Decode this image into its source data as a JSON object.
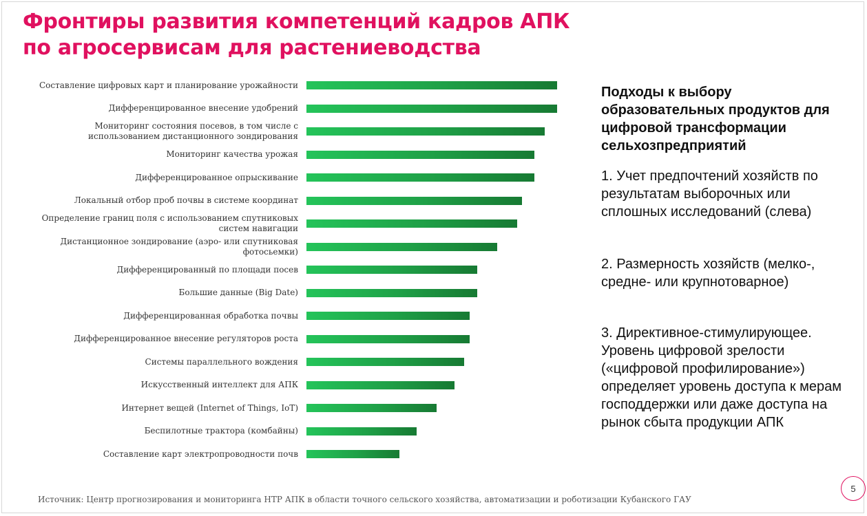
{
  "slide": {
    "title_line1": "Фронтиры развития компетенций кадров АПК",
    "title_line2": "по агросервисам для растениеводства",
    "source": "Источник: Центр прогнозирования и мониторинга НТР АПК в области точного сельского хозяйства, автоматизации и роботизации Кубанского ГАУ",
    "page_number": "5",
    "accent_color": "#e0115f",
    "bar_color": "#1fa047"
  },
  "sidebar": {
    "heading": "Подходы к выбору образовательных продуктов для цифровой трансформации сельхозпредприятий",
    "points": [
      "1. Учет предпочтений хозяйств по результатам выборочных или сплошных исследований (слева)",
      "2. Размерность хозяйств (мелко-, средне- или крупнотоварное)",
      "3. Директивное-стимулирующее. Уровень цифровой зрелости («цифровой профилирование») определяет уровень доступа к мерам господдержки или даже доступа на рынок сбыта продукции АПК"
    ]
  },
  "chart_data": {
    "type": "bar",
    "orientation": "horizontal",
    "categories": [
      "Составление цифровых карт и планирование урожайности",
      "Дифференцированное внесение удобрений",
      "Мониторинг состояния посевов, в том числе с использованием дистанционного зондирования",
      "Мониторинг качества урожая",
      "Дифференцированное опрыскивание",
      "Локальный отбор проб почвы в системе координат",
      "Определение границ поля с использованием спутниковых систем навигации",
      "Дистанционное зондирование (аэро- или спутниковая фотосьемки)",
      "Дифференцированный по площади посев",
      "Большие данные (Big Date)",
      "Дифференцированная обработка почвы",
      "Дифференцированное внесение регуляторов роста",
      "Системы параллельного вождения",
      "Искусственный интеллект для АПК",
      "Интернет вещей (Internet of Things, IoT)",
      "Беспилотные трактора (комбайны)",
      "Составление карт электропроводности почв"
    ],
    "values": [
      100,
      100,
      95,
      91,
      91,
      86,
      84,
      76,
      68,
      68,
      65,
      65,
      63,
      59,
      52,
      44,
      37
    ],
    "xlim": [
      0,
      100
    ],
    "grid": false,
    "legend": "none"
  }
}
